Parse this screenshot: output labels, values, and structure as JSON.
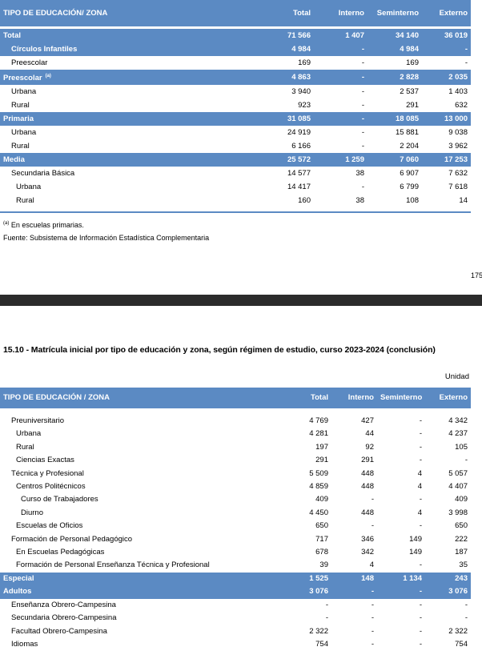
{
  "table1": {
    "headers": [
      "TIPO DE EDUCACIÓN/ ZONA",
      "Total",
      "Interno",
      "Seminterno",
      "Externo"
    ],
    "rows": [
      {
        "label": "Total",
        "style": "band",
        "indent": 0,
        "values": [
          "71 566",
          "1 407",
          "34 140",
          "36 019"
        ]
      },
      {
        "label": "Círculos Infantiles",
        "style": "band",
        "indent": 1,
        "values": [
          "4 984",
          "-",
          "4 984",
          "-"
        ]
      },
      {
        "label": "Preescolar",
        "style": "plain",
        "indent": 1,
        "values": [
          "169",
          "-",
          "169",
          "-"
        ]
      },
      {
        "label": "Preescolar",
        "sup": "(a)",
        "style": "band",
        "indent": 0,
        "values": [
          "4 863",
          "-",
          "2 828",
          "2 035"
        ]
      },
      {
        "label": "Urbana",
        "style": "plain",
        "indent": 1,
        "values": [
          "3 940",
          "-",
          "2 537",
          "1 403"
        ]
      },
      {
        "label": "Rural",
        "style": "plain",
        "indent": 1,
        "values": [
          "923",
          "-",
          "291",
          "632"
        ]
      },
      {
        "label": "Primaria",
        "style": "band",
        "indent": 0,
        "values": [
          "31 085",
          "-",
          "18 085",
          "13 000"
        ]
      },
      {
        "label": "Urbana",
        "style": "plain",
        "indent": 1,
        "values": [
          "24 919",
          "-",
          "15 881",
          "9 038"
        ]
      },
      {
        "label": "Rural",
        "style": "plain",
        "indent": 1,
        "values": [
          "6 166",
          "-",
          "2 204",
          "3 962"
        ]
      },
      {
        "label": "Media",
        "style": "band",
        "indent": 0,
        "values": [
          "25 572",
          "1 259",
          "7 060",
          "17 253"
        ]
      },
      {
        "label": "Secundaria Básica",
        "style": "plain",
        "indent": 1,
        "values": [
          "14 577",
          "38",
          "6 907",
          "7 632"
        ]
      },
      {
        "label": "Urbana",
        "style": "plain",
        "indent": 2,
        "values": [
          "14 417",
          "-",
          "6 799",
          "7 618"
        ]
      },
      {
        "label": "Rural",
        "style": "plain",
        "indent": 2,
        "values": [
          "160",
          "38",
          "108",
          "14"
        ]
      }
    ]
  },
  "footnote": {
    "marker": "(a)",
    "text": " En escuelas primarias."
  },
  "source": "Fuente: Subsistema de Información Estadística Complementaria",
  "page_number": "175",
  "section_title": "15.10 - Matrícula inicial por tipo de educación y zona, según régimen de estudio, curso 2023-2024 (conclusión)",
  "unit_label": "Unidad",
  "table2": {
    "headers": [
      "TIPO DE EDUCACIÓN / ZONA",
      "Total",
      "Interno",
      "Seminterno",
      "Externo"
    ],
    "rows": [
      {
        "label": "Preuniversitario",
        "style": "plain",
        "indent": 1,
        "values": [
          "4 769",
          "427",
          "-",
          "4 342"
        ]
      },
      {
        "label": "Urbana",
        "style": "plain",
        "indent": 2,
        "values": [
          "4 281",
          "44",
          "-",
          "4 237"
        ]
      },
      {
        "label": "Rural",
        "style": "plain",
        "indent": 2,
        "values": [
          "197",
          "92",
          "-",
          "105"
        ]
      },
      {
        "label": "Ciencias Exactas",
        "style": "plain",
        "indent": 2,
        "values": [
          "291",
          "291",
          "-",
          "-"
        ]
      },
      {
        "label": "Técnica y Profesional",
        "style": "plain",
        "indent": 1,
        "values": [
          "5 509",
          "448",
          "4",
          "5 057"
        ]
      },
      {
        "label": "Centros Politécnicos",
        "style": "plain",
        "indent": 2,
        "values": [
          "4 859",
          "448",
          "4",
          "4 407"
        ]
      },
      {
        "label": "Curso de Trabajadores",
        "style": "plain",
        "indent": 3,
        "values": [
          "409",
          "-",
          "-",
          "409"
        ]
      },
      {
        "label": "Diurno",
        "style": "plain",
        "indent": 3,
        "values": [
          "4 450",
          "448",
          "4",
          "3 998"
        ]
      },
      {
        "label": "Escuelas de Oficios",
        "style": "plain",
        "indent": 2,
        "values": [
          "650",
          "-",
          "-",
          "650"
        ]
      },
      {
        "label": "Formación de Personal Pedagógico",
        "style": "plain",
        "indent": 1,
        "values": [
          "717",
          "346",
          "149",
          "222"
        ]
      },
      {
        "label": "En Escuelas Pedagógicas",
        "style": "plain",
        "indent": 2,
        "values": [
          "678",
          "342",
          "149",
          "187"
        ]
      },
      {
        "label": "Formación de Personal Enseñanza Técnica y Profesional",
        "style": "plain",
        "indent": 2,
        "values": [
          "39",
          "4",
          "-",
          "35"
        ]
      },
      {
        "label": "Especial",
        "style": "band",
        "indent": 0,
        "values": [
          "1 525",
          "148",
          "1 134",
          "243"
        ]
      },
      {
        "label": "Adultos",
        "style": "band",
        "indent": 0,
        "values": [
          "3 076",
          "-",
          "-",
          "3 076"
        ]
      },
      {
        "label": "Enseñanza Obrero-Campesina",
        "style": "plain",
        "indent": 1,
        "values": [
          "-",
          "-",
          "-",
          "-"
        ]
      },
      {
        "label": "Secundaria Obrero-Campesina",
        "style": "plain",
        "indent": 1,
        "values": [
          "-",
          "-",
          "-",
          "-"
        ]
      },
      {
        "label": "Facultad Obrero-Campesina",
        "style": "plain",
        "indent": 1,
        "values": [
          "2 322",
          "-",
          "-",
          "2 322"
        ]
      },
      {
        "label": "Idiomas",
        "style": "plain",
        "indent": 1,
        "values": [
          "754",
          "-",
          "-",
          "754"
        ]
      }
    ]
  }
}
